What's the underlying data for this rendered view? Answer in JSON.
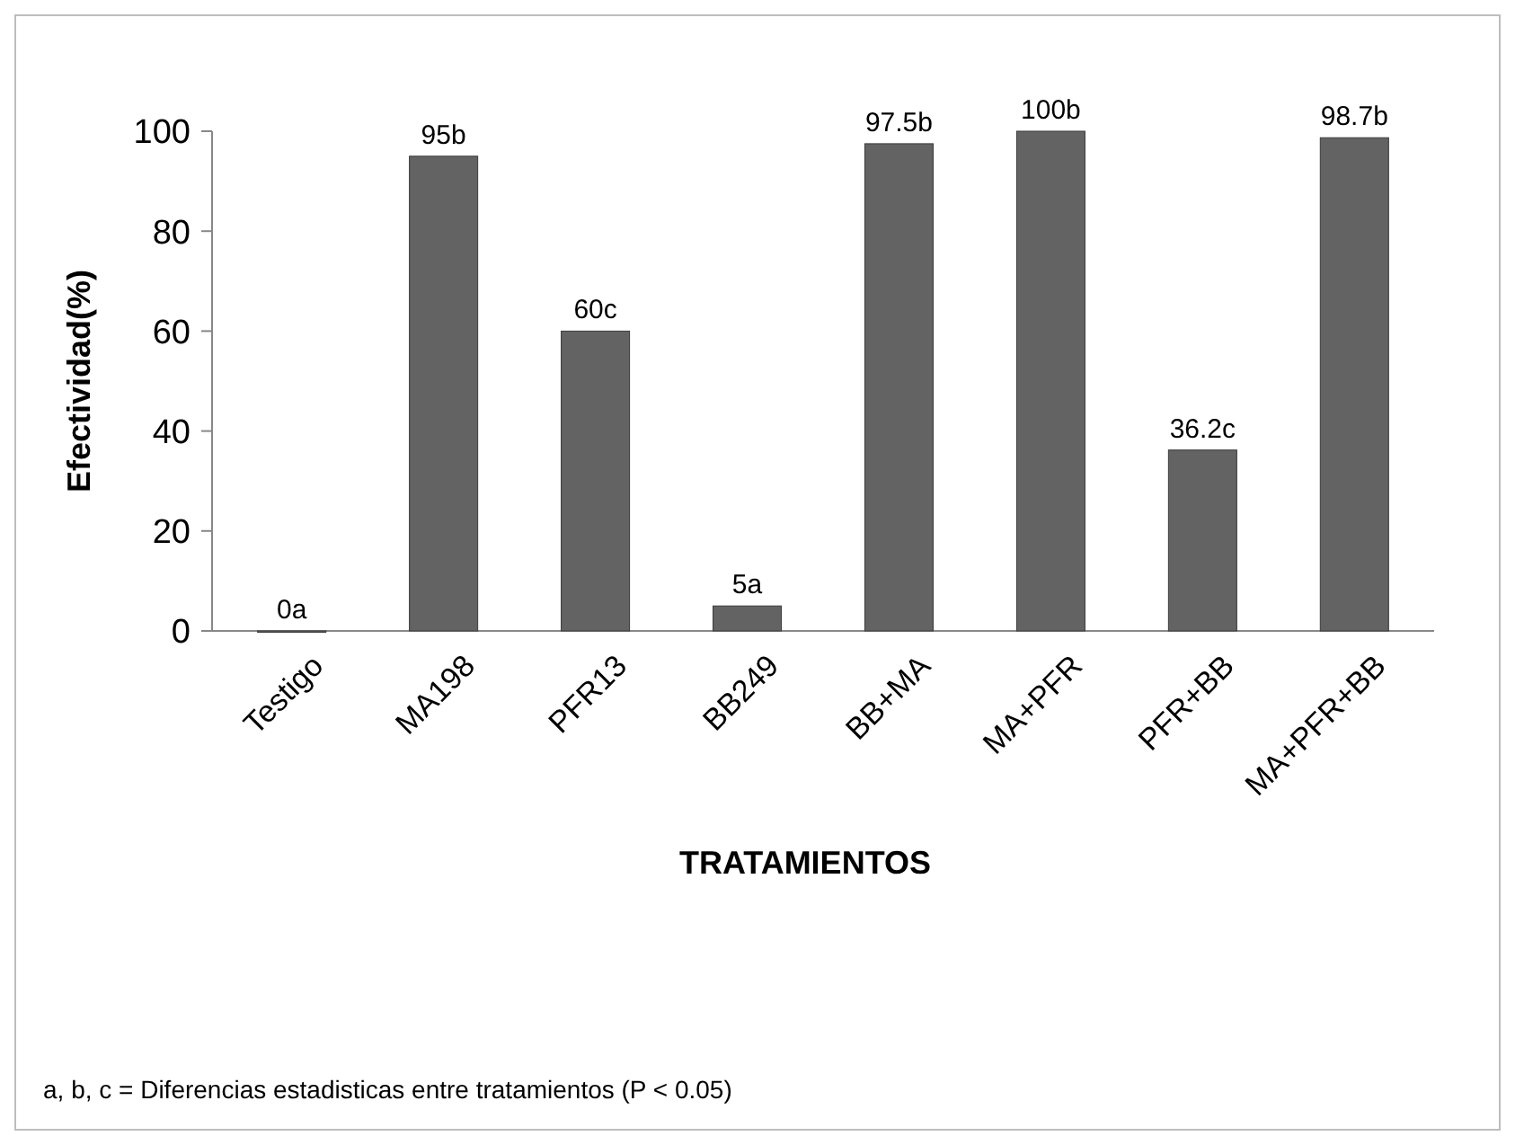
{
  "chart_data": {
    "type": "bar",
    "xlabel": "TRATAMIENTOS",
    "ylabel": "Efectividad(%)",
    "categories": [
      "Testigo",
      "MA198",
      "PFR13",
      "BB249",
      "BB+MA",
      "MA+PFR",
      "PFR+BB",
      "MA+PFR+BB"
    ],
    "values": [
      0,
      95,
      60,
      5,
      97.5,
      100,
      36.2,
      98.7
    ],
    "value_labels": [
      "0a",
      "95b",
      "60c",
      "5a",
      "97.5b",
      "100b",
      "36.2c",
      "98.7b"
    ],
    "color": "#636363",
    "ylim": [
      0,
      100
    ],
    "yticks": [
      0,
      20,
      40,
      60,
      80,
      100
    ],
    "annotations": [
      "a, b, c = Diferencias estadisticas entre tratamientos (P < 0.05)"
    ]
  }
}
